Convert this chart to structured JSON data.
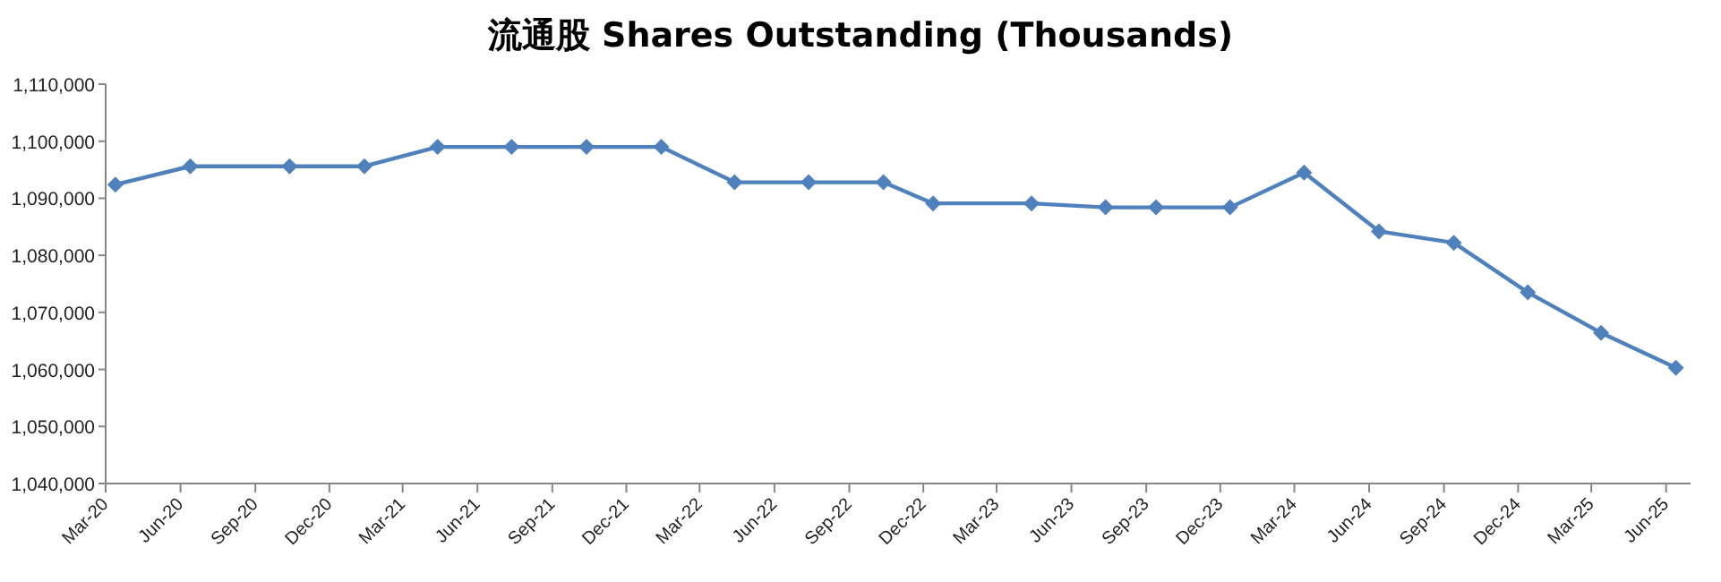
{
  "chart_data": {
    "type": "line",
    "title": "流通股 Shares Outstanding (Thousands)",
    "x": [
      "2020-03-13",
      "2020-06-13",
      "2020-10-13",
      "2021-01-13",
      "2021-04-13",
      "2021-07-13",
      "2021-10-13",
      "2022-01-13",
      "2022-04-13",
      "2022-07-13",
      "2022-10-13",
      "2022-12-13",
      "2023-04-13",
      "2023-07-13",
      "2023-09-13",
      "2023-12-13",
      "2024-03-13",
      "2024-06-13",
      "2024-09-13",
      "2024-12-13",
      "2025-03-13",
      "2025-06-13"
    ],
    "series": [
      {
        "color": "#4f81bd",
        "values": [
          1092400,
          1095600,
          1095600,
          1095600,
          1099000,
          1099000,
          1099000,
          1099000,
          1092800,
          1092800,
          1092800,
          1089100,
          1089100,
          1088400,
          1088400,
          1088400,
          1094500,
          1084200,
          1082200,
          1073500,
          1066400,
          1060300
        ]
      }
    ],
    "xlim": [
      "2020-03-01",
      "2025-07-01"
    ],
    "xticks": [
      {
        "value": "2020-03-01",
        "label": "Mar-20"
      },
      {
        "value": "2020-06-01",
        "label": "Jun-20"
      },
      {
        "value": "2020-09-01",
        "label": "Sep-20"
      },
      {
        "value": "2020-12-01",
        "label": "Dec-20"
      },
      {
        "value": "2021-03-01",
        "label": "Mar-21"
      },
      {
        "value": "2021-06-01",
        "label": "Jun-21"
      },
      {
        "value": "2021-09-01",
        "label": "Sep-21"
      },
      {
        "value": "2021-12-01",
        "label": "Dec-21"
      },
      {
        "value": "2022-03-01",
        "label": "Mar-22"
      },
      {
        "value": "2022-06-01",
        "label": "Jun-22"
      },
      {
        "value": "2022-09-01",
        "label": "Sep-22"
      },
      {
        "value": "2022-12-01",
        "label": "Dec-22"
      },
      {
        "value": "2023-03-01",
        "label": "Mar-23"
      },
      {
        "value": "2023-06-01",
        "label": "Jun-23"
      },
      {
        "value": "2023-09-01",
        "label": "Sep-23"
      },
      {
        "value": "2023-12-01",
        "label": "Dec-23"
      },
      {
        "value": "2024-03-01",
        "label": "Mar-24"
      },
      {
        "value": "2024-06-01",
        "label": "Jun-24"
      },
      {
        "value": "2024-09-01",
        "label": "Sep-24"
      },
      {
        "value": "2024-12-01",
        "label": "Dec-24"
      },
      {
        "value": "2025-03-01",
        "label": "Mar-25"
      },
      {
        "value": "2025-06-01",
        "label": "Jun-25"
      }
    ],
    "ylim": [
      1040000,
      1110000
    ],
    "yticks": [
      {
        "value": 1040000,
        "label": "1,040,000"
      },
      {
        "value": 1050000,
        "label": "1,050,000"
      },
      {
        "value": 1060000,
        "label": "1,060,000"
      },
      {
        "value": 1070000,
        "label": "1,070,000"
      },
      {
        "value": 1080000,
        "label": "1,080,000"
      },
      {
        "value": 1090000,
        "label": "1,090,000"
      },
      {
        "value": 1100000,
        "label": "1,100,000"
      },
      {
        "value": 1110000,
        "label": "1,110,000"
      }
    ],
    "grid": false,
    "marker": "diamond",
    "line_style": "solid"
  }
}
